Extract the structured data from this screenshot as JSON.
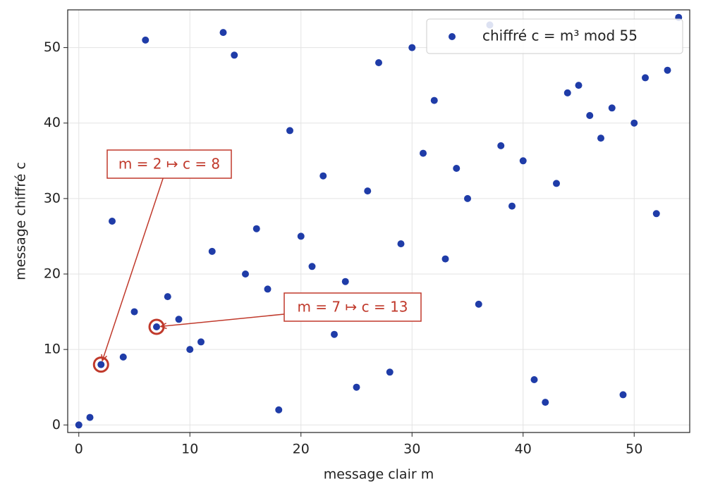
{
  "chart_data": {
    "type": "scatter",
    "xlabel": "message clair m",
    "ylabel": "message chiffré c",
    "series": [
      {
        "name": "chiffré c = m³ mod 55",
        "color": "#1f3ca8",
        "x": [
          0,
          1,
          2,
          3,
          4,
          5,
          6,
          7,
          8,
          9,
          10,
          11,
          12,
          13,
          14,
          15,
          16,
          17,
          18,
          19,
          20,
          21,
          22,
          23,
          24,
          25,
          26,
          27,
          28,
          29,
          30,
          31,
          32,
          33,
          34,
          35,
          36,
          37,
          38,
          39,
          40,
          41,
          42,
          43,
          44,
          45,
          46,
          47,
          48,
          49,
          50,
          51,
          52,
          53,
          54
        ],
        "values": [
          0,
          1,
          8,
          27,
          9,
          15,
          51,
          13,
          17,
          14,
          10,
          11,
          23,
          52,
          49,
          20,
          26,
          18,
          2,
          39,
          25,
          21,
          33,
          12,
          19,
          5,
          31,
          48,
          7,
          24,
          50,
          36,
          43,
          22,
          34,
          30,
          16,
          53,
          37,
          29,
          35,
          6,
          3,
          32,
          44,
          45,
          41,
          38,
          42,
          4,
          40,
          46,
          28,
          47,
          54
        ]
      }
    ],
    "annotations": [
      {
        "text": "m = 2 ↦ c = 8",
        "x": 2,
        "y": 8,
        "color": "#c0392b"
      },
      {
        "text": "m = 7 ↦ c = 13",
        "x": 7,
        "y": 13,
        "color": "#c0392b"
      }
    ],
    "xlim": [
      -1,
      55
    ],
    "ylim": [
      -1,
      55
    ],
    "xticks": [
      0,
      10,
      20,
      30,
      40,
      50
    ],
    "yticks": [
      0,
      10,
      20,
      30,
      40,
      50
    ],
    "grid": true,
    "legend": "upper right"
  }
}
